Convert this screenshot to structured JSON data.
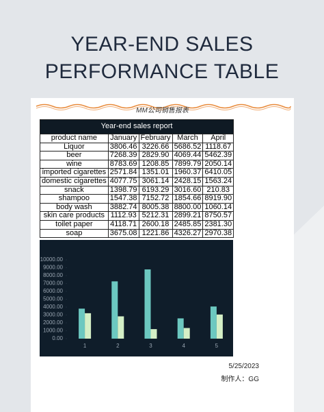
{
  "header": {
    "title_lines": [
      "YEAR-END SALES",
      "PERFORMANCE TABLE"
    ]
  },
  "document": {
    "subtitle": "MM公司销售报表",
    "table": {
      "caption": "Year-end sales report",
      "columns": [
        "product name",
        "January",
        "February",
        "March",
        "April"
      ],
      "rows": [
        [
          "Liquor",
          "3806.46",
          "3226.66",
          "5686.52",
          "1118.67"
        ],
        [
          "beer",
          "7268.39",
          "2829.90",
          "4069.44",
          "5462.39"
        ],
        [
          "wine",
          "8783.69",
          "1208.85",
          "7899.79",
          "2050.14"
        ],
        [
          "imported cigarettes",
          "2571.84",
          "1351.01",
          "1960.37",
          "6410.05"
        ],
        [
          "domestic cigarettes",
          "4077.75",
          "3061.14",
          "2428.15",
          "1563.24"
        ],
        [
          "snack",
          "1398.79",
          "6193.29",
          "3016.60",
          "210.83"
        ],
        [
          "shampoo",
          "1547.38",
          "7152.72",
          "1854.66",
          "8919.90"
        ],
        [
          "body wash",
          "3882.74",
          "8005.38",
          "8800.00",
          "1060.14"
        ],
        [
          "skin care products",
          "1112.93",
          "5212.31",
          "2899.21",
          "8750.57"
        ],
        [
          "toilet paper",
          "4118.71",
          "2600.18",
          "2485.85",
          "2381.30"
        ],
        [
          "soap",
          "3675.08",
          "1221.86",
          "4326.27",
          "2970.38"
        ]
      ]
    },
    "footer": {
      "date": "5/25/2023",
      "author": "制作人：GG"
    }
  },
  "chart_data": {
    "type": "bar",
    "categories": [
      "1",
      "2",
      "3",
      "4",
      "5"
    ],
    "series": [
      {
        "color": "#6cc8c0",
        "values": [
          3806.46,
          7268.39,
          8783.69,
          2571.84,
          4077.75
        ]
      },
      {
        "color": "#d4efc6",
        "values": [
          3226.66,
          2829.9,
          1208.85,
          1351.01,
          3061.14
        ]
      }
    ],
    "ylim": [
      0,
      10000
    ],
    "yticks": [
      {
        "value": 0,
        "label": "0.00"
      },
      {
        "value": 1000,
        "label": "1000.00"
      },
      {
        "value": 2000,
        "label": "2000.00"
      },
      {
        "value": 3000,
        "label": "3000.00"
      },
      {
        "value": 4000,
        "label": "4000.00"
      },
      {
        "value": 5000,
        "label": "5000.00"
      },
      {
        "value": 6000,
        "label": "6000.00"
      },
      {
        "value": 7000,
        "label": "7000.00"
      },
      {
        "value": 8000,
        "label": "8000.00"
      },
      {
        "value": 9000,
        "label": "9000.00"
      },
      {
        "value": 10000,
        "label": "10000.00"
      }
    ]
  }
}
